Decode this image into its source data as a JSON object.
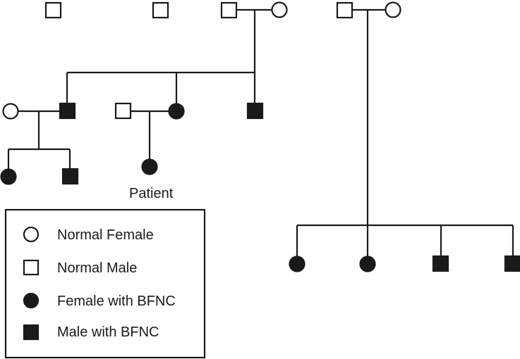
{
  "pedigree": {
    "patient_label": "Patient",
    "colors": {
      "ink": "#1a1a1a",
      "background": "#ffffff"
    },
    "individuals": [
      {
        "id": "g1-m1",
        "sex": "male",
        "affected": false
      },
      {
        "id": "g1-m2",
        "sex": "male",
        "affected": false
      },
      {
        "id": "g1-m3",
        "sex": "male",
        "affected": false
      },
      {
        "id": "g1-f1",
        "sex": "female",
        "affected": false
      },
      {
        "id": "g1-m4",
        "sex": "male",
        "affected": false
      },
      {
        "id": "g1-f2",
        "sex": "female",
        "affected": false
      },
      {
        "id": "g2-f1",
        "sex": "female",
        "affected": false
      },
      {
        "id": "g2-m1",
        "sex": "male",
        "affected": true
      },
      {
        "id": "g2-m2",
        "sex": "male",
        "affected": false
      },
      {
        "id": "g2-f2",
        "sex": "female",
        "affected": true
      },
      {
        "id": "g2-m3",
        "sex": "male",
        "affected": true
      },
      {
        "id": "g3-f1",
        "sex": "female",
        "affected": true
      },
      {
        "id": "g3-m1",
        "sex": "male",
        "affected": true
      },
      {
        "id": "g3-f2",
        "sex": "female",
        "affected": true,
        "patient": true
      },
      {
        "id": "g2b-f1",
        "sex": "female",
        "affected": true
      },
      {
        "id": "g2b-f2",
        "sex": "female",
        "affected": true
      },
      {
        "id": "g2b-m1",
        "sex": "male",
        "affected": true
      },
      {
        "id": "g2b-m2",
        "sex": "male",
        "affected": true
      }
    ]
  },
  "legend": {
    "items": [
      {
        "label": "Normal Female",
        "symbol": "circle-open"
      },
      {
        "label": "Normal Male",
        "symbol": "square-open"
      },
      {
        "label": "Female with BFNC",
        "symbol": "circle-filled"
      },
      {
        "label": "Male with BFNC",
        "symbol": "square-filled"
      }
    ]
  }
}
